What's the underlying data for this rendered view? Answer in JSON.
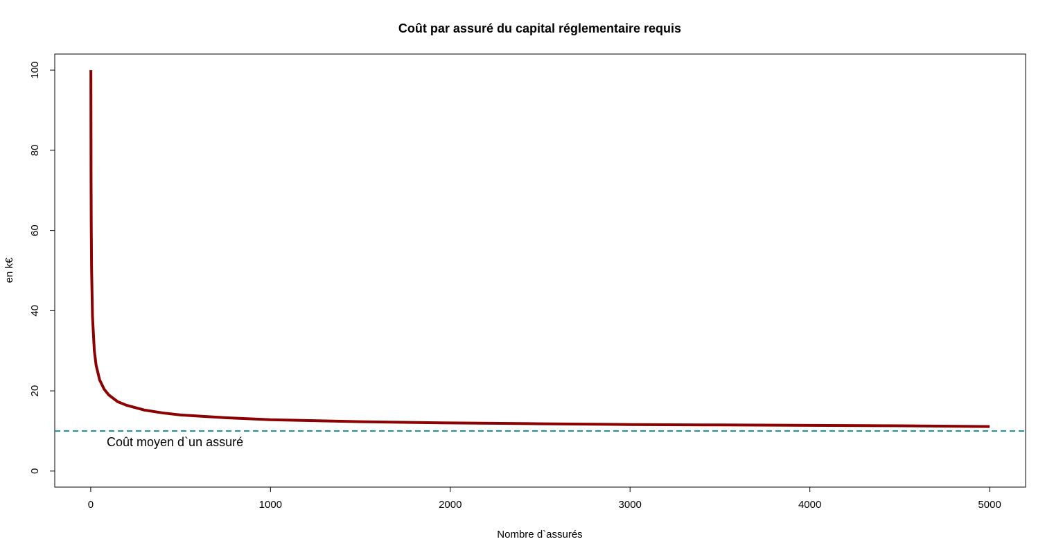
{
  "chart_data": {
    "type": "line",
    "title": "Coût par assuré du capital réglementaire requis",
    "x_label": "Nombre d`assurés",
    "y_label": "en k€",
    "x": [
      1,
      2,
      3,
      5,
      10,
      20,
      30,
      50,
      75,
      100,
      150,
      200,
      300,
      400,
      500,
      750,
      1000,
      1500,
      2000,
      2500,
      3000,
      3500,
      4000,
      4500,
      5000
    ],
    "series": [
      {
        "color": "#8b0000",
        "values": [
          100,
          73.6,
          62,
          50.2,
          38.5,
          30.1,
          26.4,
          22.7,
          20.4,
          19,
          17.3,
          16.4,
          15.2,
          14.5,
          14,
          13.3,
          12.8,
          12.3,
          12,
          11.8,
          11.6,
          11.5,
          11.4,
          11.3,
          11.1
        ]
      }
    ],
    "hline": {
      "value": 10,
      "color": "#1a9a9a",
      "label": "Coût moyen d`un assuré",
      "label_color": "#108a80"
    },
    "xlim": [
      -200,
      5200
    ],
    "ylim": [
      -4,
      104
    ],
    "xticks": [
      0,
      1000,
      2000,
      3000,
      4000,
      5000
    ],
    "yticks": [
      0,
      20,
      40,
      60,
      80,
      100
    ]
  }
}
